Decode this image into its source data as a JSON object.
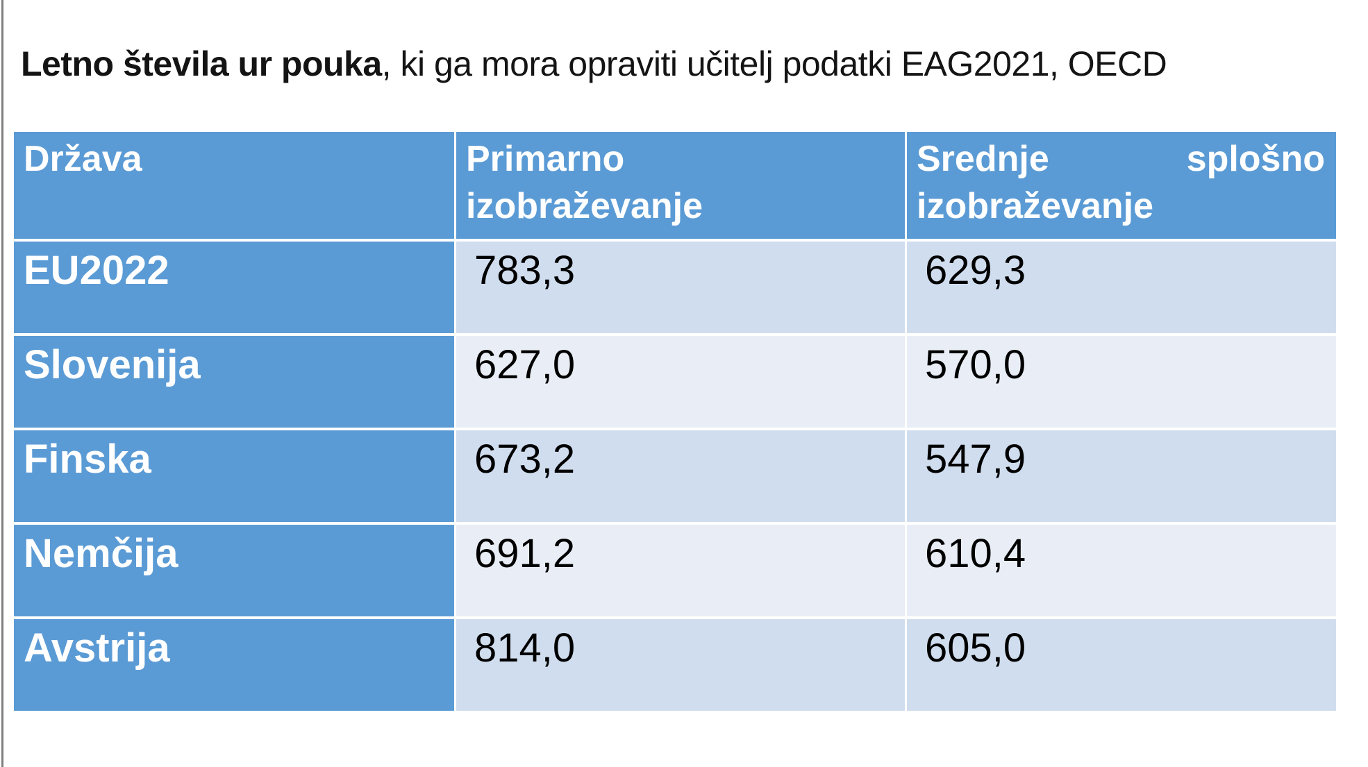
{
  "page": {
    "title_bold": "Letno števila ur pouka",
    "title_rest": ", ki ga mora opraviti učitelj podatki EAG2021, OECD"
  },
  "table": {
    "columns": [
      "Država",
      "Primarno izobraževanje",
      "Srednje splošno izobraževanje"
    ],
    "rows": [
      {
        "label": "EU2022",
        "primary": "783,3",
        "secondary": "629,3"
      },
      {
        "label": "Slovenija",
        "primary": "627,0",
        "secondary": "570,0"
      },
      {
        "label": "Finska",
        "primary": "673,2",
        "secondary": "547,9"
      },
      {
        "label": "Nemčija",
        "primary": "691,2",
        "secondary": "610,4"
      },
      {
        "label": "Avstrija",
        "primary": "814,0",
        "secondary": "605,0"
      }
    ]
  },
  "chart_data": {
    "type": "table",
    "title": "Letno števila ur pouka, ki ga mora opraviti učitelj podatki EAG2021, OECD",
    "columns": [
      "Država",
      "Primarno izobraževanje",
      "Srednje splošno izobraževanje"
    ],
    "categories": [
      "EU2022",
      "Slovenija",
      "Finska",
      "Nemčija",
      "Avstrija"
    ],
    "series": [
      {
        "name": "Primarno izobraževanje",
        "values": [
          783.3,
          627.0,
          673.2,
          691.2,
          814.0
        ]
      },
      {
        "name": "Srednje splošno izobraževanje",
        "values": [
          629.3,
          570.0,
          547.9,
          610.4,
          605.0
        ]
      }
    ]
  },
  "colors": {
    "header_blue": "#5b9bd5",
    "band_dark": "#d0ddee",
    "band_light": "#e9eef6",
    "cell_border": "#ffffff",
    "edge_line_gray": "#7f7f7f",
    "header_text": "#ffffff",
    "value_text": "#000000"
  }
}
